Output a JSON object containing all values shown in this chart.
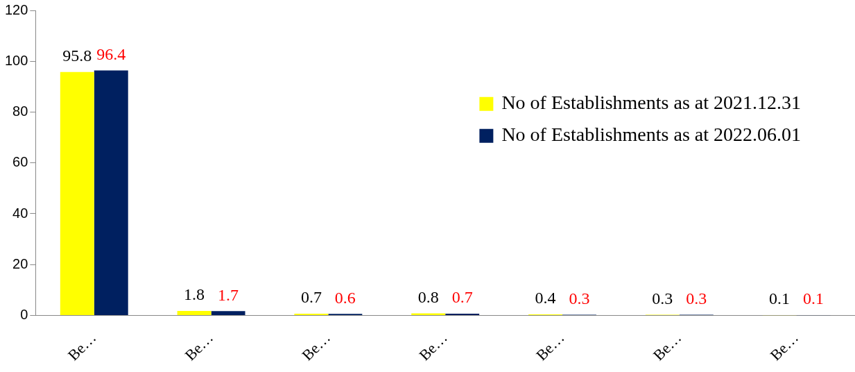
{
  "chart_data": {
    "type": "bar",
    "categories": [
      "Be…",
      "Be…",
      "Be…",
      "Be…",
      "Be…",
      "Be…",
      "Be…"
    ],
    "series": [
      {
        "name": "No of Establishments as at 2021.12.31",
        "color": "#ffff00",
        "values": [
          95.8,
          1.8,
          0.7,
          0.8,
          0.4,
          0.3,
          0.1
        ]
      },
      {
        "name": "No of Establishments as at 2022.06.01",
        "color": "#002060",
        "values": [
          96.4,
          1.7,
          0.6,
          0.7,
          0.3,
          0.3,
          0.1
        ]
      }
    ],
    "ylim": [
      0,
      120
    ],
    "yticks": [
      0,
      20,
      40,
      60,
      80,
      100,
      120
    ],
    "grid": false,
    "legend": "right",
    "data_labels": true
  }
}
